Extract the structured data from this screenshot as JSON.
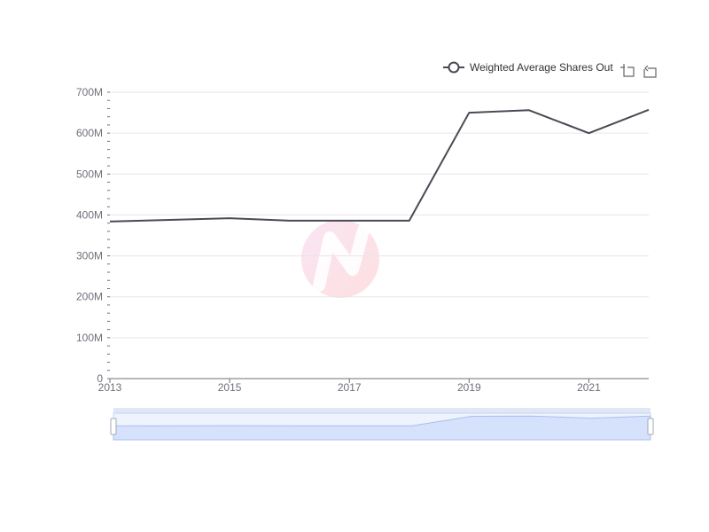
{
  "legend": {
    "label": "Weighted Average Shares Out"
  },
  "toolbox": {
    "zoom_icon": "zoom-icon",
    "restore_icon": "restore-icon"
  },
  "colors": {
    "series_line": "#4a4a55",
    "grid": "#e6e6e6",
    "axis": "#6e7079",
    "slider_fill": "#d6e2fb",
    "slider_border": "#b8c9ef",
    "watermark_start": "#f3c6e6",
    "watermark_end": "#fbb8b8"
  },
  "chart_data": {
    "type": "line",
    "title": "",
    "xlabel": "",
    "ylabel": "",
    "x": [
      2013,
      2014,
      2015,
      2016,
      2017,
      2018,
      2019,
      2020,
      2021,
      2022
    ],
    "series": [
      {
        "name": "Weighted Average Shares Out",
        "values": [
          384000000,
          388000000,
          392000000,
          386000000,
          386000000,
          386000000,
          650000000,
          656000000,
          600000000,
          657000000
        ]
      }
    ],
    "xlim": [
      2013,
      2022
    ],
    "ylim": [
      0,
      700000000
    ],
    "x_tick_labels": [
      "2013",
      "2015",
      "2017",
      "2019",
      "2021"
    ],
    "y_tick_labels": [
      "0",
      "100M",
      "200M",
      "300M",
      "400M",
      "500M",
      "600M",
      "700M"
    ],
    "grid": true,
    "legend_position": "top-right",
    "zoom_slider": true
  }
}
